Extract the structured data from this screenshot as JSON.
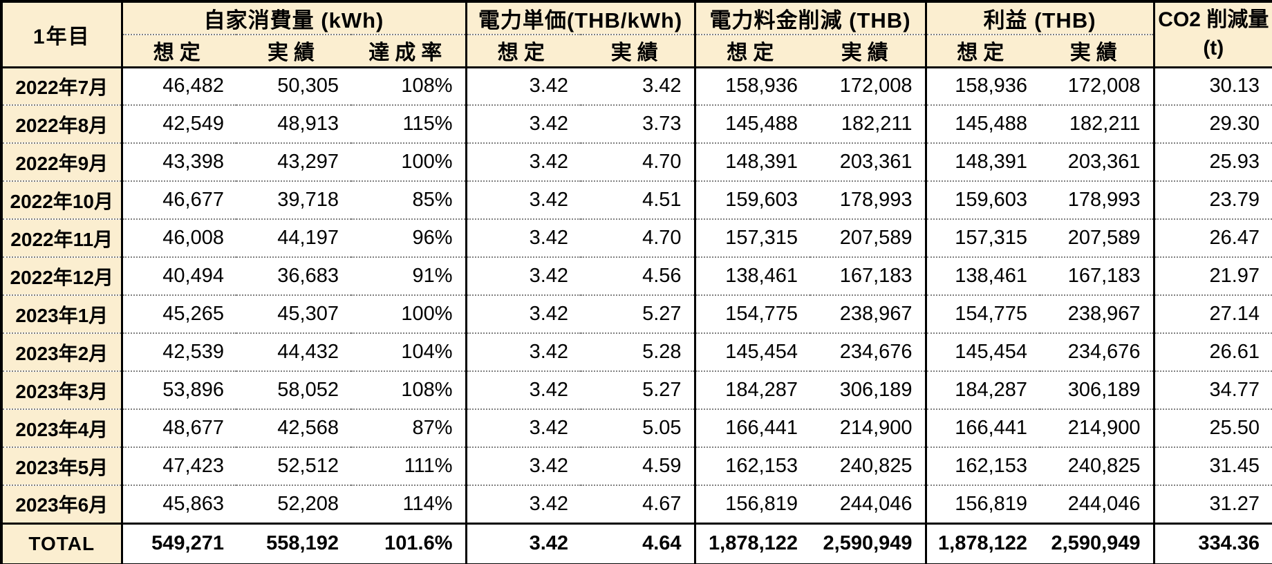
{
  "table": {
    "corner_label": "1年目",
    "groups": [
      {
        "label": "自家消費量 (kWh)",
        "sublabels": [
          "想定",
          "実績",
          "達成率"
        ]
      },
      {
        "label": "電力単価(THB/kWh)",
        "sublabels": [
          "想定",
          "実績"
        ]
      },
      {
        "label": "電力料金削減 (THB)",
        "sublabels": [
          "想定",
          "実績"
        ]
      },
      {
        "label": "利益 (THB)",
        "sublabels": [
          "想定",
          "実績"
        ]
      }
    ],
    "co2_label_line1": "CO2 削減量",
    "co2_label_line2": "(t)",
    "rows": [
      {
        "month": "2022年7月",
        "values": [
          "46,482",
          "50,305",
          "108%",
          "3.42",
          "3.42",
          "158,936",
          "172,008",
          "158,936",
          "172,008",
          "30.13"
        ]
      },
      {
        "month": "2022年8月",
        "values": [
          "42,549",
          "48,913",
          "115%",
          "3.42",
          "3.73",
          "145,488",
          "182,211",
          "145,488",
          "182,211",
          "29.30"
        ]
      },
      {
        "month": "2022年9月",
        "values": [
          "43,398",
          "43,297",
          "100%",
          "3.42",
          "4.70",
          "148,391",
          "203,361",
          "148,391",
          "203,361",
          "25.93"
        ]
      },
      {
        "month": "2022年10月",
        "values": [
          "46,677",
          "39,718",
          "85%",
          "3.42",
          "4.51",
          "159,603",
          "178,993",
          "159,603",
          "178,993",
          "23.79"
        ]
      },
      {
        "month": "2022年11月",
        "values": [
          "46,008",
          "44,197",
          "96%",
          "3.42",
          "4.70",
          "157,315",
          "207,589",
          "157,315",
          "207,589",
          "26.47"
        ]
      },
      {
        "month": "2022年12月",
        "values": [
          "40,494",
          "36,683",
          "91%",
          "3.42",
          "4.56",
          "138,461",
          "167,183",
          "138,461",
          "167,183",
          "21.97"
        ]
      },
      {
        "month": "2023年1月",
        "values": [
          "45,265",
          "45,307",
          "100%",
          "3.42",
          "5.27",
          "154,775",
          "238,967",
          "154,775",
          "238,967",
          "27.14"
        ]
      },
      {
        "month": "2023年2月",
        "values": [
          "42,539",
          "44,432",
          "104%",
          "3.42",
          "5.28",
          "145,454",
          "234,676",
          "145,454",
          "234,676",
          "26.61"
        ]
      },
      {
        "month": "2023年3月",
        "values": [
          "53,896",
          "58,052",
          "108%",
          "3.42",
          "5.27",
          "184,287",
          "306,189",
          "184,287",
          "306,189",
          "34.77"
        ]
      },
      {
        "month": "2023年4月",
        "values": [
          "48,677",
          "42,568",
          "87%",
          "3.42",
          "5.05",
          "166,441",
          "214,900",
          "166,441",
          "214,900",
          "25.50"
        ]
      },
      {
        "month": "2023年5月",
        "values": [
          "47,423",
          "52,512",
          "111%",
          "3.42",
          "4.59",
          "162,153",
          "240,825",
          "162,153",
          "240,825",
          "31.45"
        ]
      },
      {
        "month": "2023年6月",
        "values": [
          "45,863",
          "52,208",
          "114%",
          "3.42",
          "4.67",
          "156,819",
          "244,046",
          "156,819",
          "244,046",
          "31.27"
        ]
      }
    ],
    "total": {
      "label": "TOTAL",
      "values": [
        "549,271",
        "558,192",
        "101.6%",
        "3.42",
        "4.64",
        "1,878,122",
        "2,590,949",
        "1,878,122",
        "2,590,949",
        "334.36"
      ]
    }
  },
  "colors": {
    "header_bg": "#FBEED0",
    "border": "#000000",
    "row_divider": "#7F7F7F"
  }
}
